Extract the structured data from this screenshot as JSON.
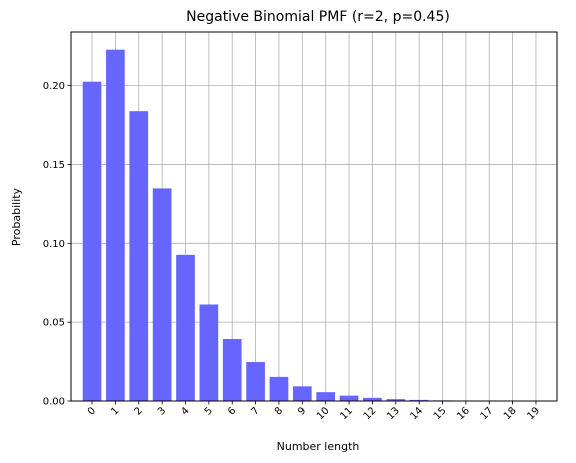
{
  "chart_data": {
    "type": "bar",
    "title": "Negative Binomial PMF (r=2, p=0.45)",
    "xlabel": "Number length",
    "ylabel": "Probability",
    "categories": [
      "0",
      "1",
      "2",
      "3",
      "4",
      "5",
      "6",
      "7",
      "8",
      "9",
      "10",
      "11",
      "12",
      "13",
      "14",
      "15",
      "16",
      "17",
      "18",
      "19"
    ],
    "values": [
      0.2025,
      0.2228,
      0.1838,
      0.1348,
      0.0927,
      0.0612,
      0.0393,
      0.0247,
      0.0153,
      0.0093,
      0.0056,
      0.0034,
      0.002,
      0.0012,
      0.0007,
      0.0004,
      0.0002,
      0.0001,
      0.0001,
      0.0
    ],
    "yticks": [
      "0.00",
      "0.05",
      "0.10",
      "0.15",
      "0.20"
    ],
    "ylim": [
      0,
      0.234
    ],
    "xlim": [
      -0.9,
      19.9
    ],
    "grid": true,
    "bar_color": "#6666ff",
    "x_tick_rotation": 45
  }
}
